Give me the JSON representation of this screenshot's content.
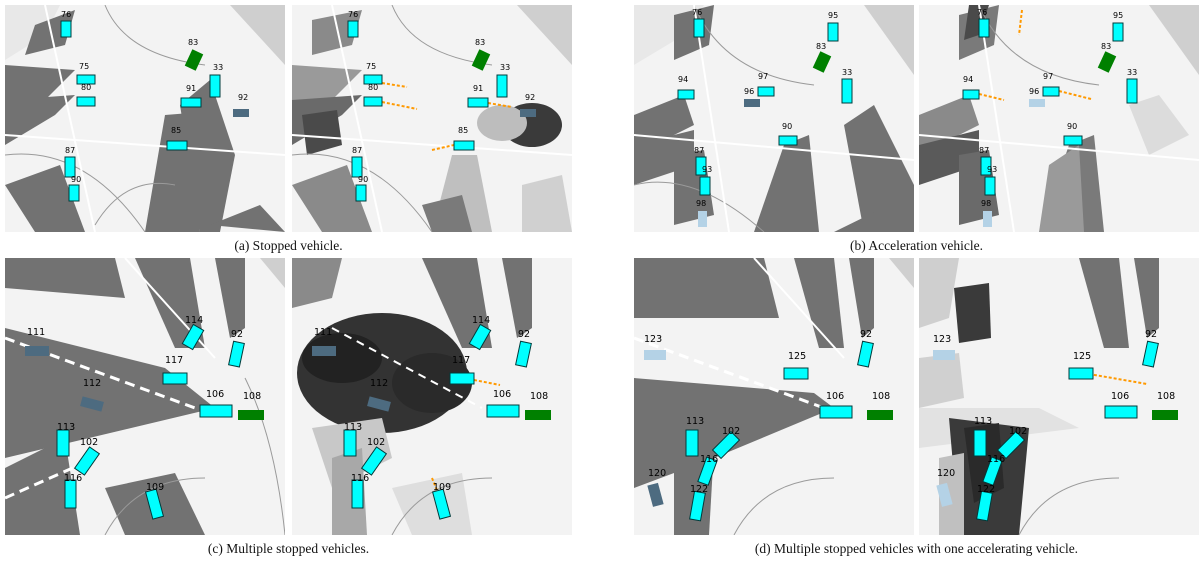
{
  "figures": [
    {
      "caption": "(a) Stopped vehicle.",
      "left_labels": [
        "76",
        "83",
        "75",
        "33",
        "80",
        "91",
        "92",
        "85",
        "87",
        "90"
      ],
      "right_labels": [
        "76",
        "83",
        "75",
        "33",
        "80",
        "91",
        "92",
        "85",
        "87",
        "90"
      ]
    },
    {
      "caption": "(b) Acceleration vehicle.",
      "left_labels": [
        "76",
        "95",
        "83",
        "94",
        "97",
        "33",
        "96",
        "90",
        "87",
        "93",
        "98"
      ],
      "right_labels": [
        "76",
        "95",
        "83",
        "94",
        "97",
        "33",
        "96",
        "90",
        "87",
        "93",
        "98"
      ]
    },
    {
      "caption": "(c) Multiple stopped vehicles.",
      "left_labels": [
        "114",
        "92",
        "111",
        "117",
        "112",
        "106",
        "108",
        "113",
        "102",
        "116",
        "109"
      ],
      "right_labels": [
        "114",
        "92",
        "111",
        "117",
        "112",
        "106",
        "108",
        "113",
        "102",
        "116",
        "109"
      ]
    },
    {
      "caption": "(d) Multiple stopped vehicles with one accelerating vehicle.",
      "left_labels": [
        "92",
        "123",
        "125",
        "106",
        "108",
        "113",
        "102",
        "116",
        "120",
        "122"
      ],
      "right_labels": [
        "92",
        "123",
        "125",
        "106",
        "108",
        "113",
        "102",
        "116",
        "120",
        "122"
      ]
    }
  ],
  "colors": {
    "vehicle": "#00ffff",
    "vehicle_dark": "#003b3b",
    "static_vehicle": "#008000",
    "occluded_vehicle": "#4d6b80",
    "occlusion_shadow": "#707070",
    "prediction": "#ff9900"
  }
}
